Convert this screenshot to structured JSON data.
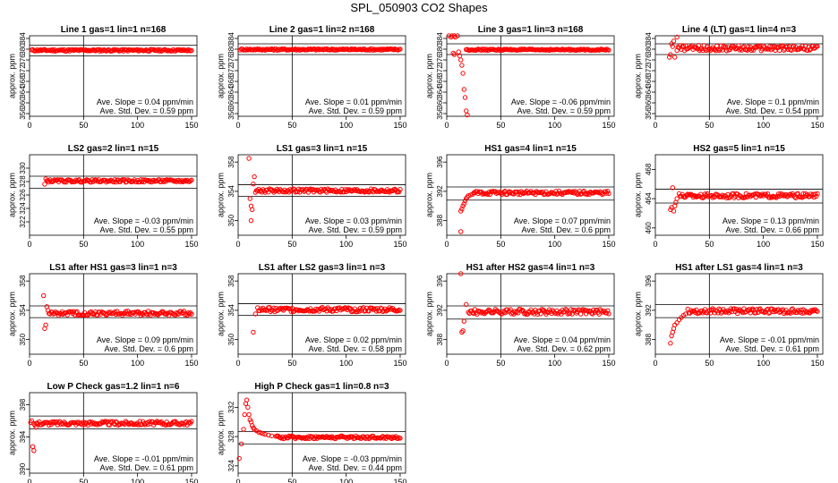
{
  "figure_title": "SPL_050903  CO2 Shapes",
  "style": {
    "point_color": "#ff0000",
    "line_color": "#000000"
  },
  "chart_data": [
    {
      "type": "scatter",
      "title": "Line 1 gas=1 lin=1 n=168",
      "ylabel": "approx. ppm",
      "xlim": [
        0,
        155
      ],
      "ylim": [
        355,
        385
      ],
      "xticks": [
        0,
        50,
        100,
        150
      ],
      "yticks": [
        356,
        360,
        364,
        368,
        372,
        376,
        380,
        384
      ],
      "hlines": [
        377.5,
        381.5
      ],
      "vline": 50,
      "slope_text": "Ave. Slope = 0.04  ppm/min",
      "stddev_text": "Ave. Std. Dev. = 0.59  ppm",
      "series": [
        {
          "x_start": 2,
          "x_end": 150,
          "base": 379.6,
          "noise": 0.35
        }
      ],
      "extra_points": []
    },
    {
      "type": "scatter",
      "title": "Line 2 gas=1 lin=2 n=168",
      "ylabel": "approx. ppm",
      "xlim": [
        0,
        155
      ],
      "ylim": [
        355,
        385
      ],
      "xticks": [
        0,
        50,
        100,
        150
      ],
      "yticks": [
        356,
        360,
        364,
        368,
        372,
        376,
        380,
        384
      ],
      "hlines": [
        378,
        382
      ],
      "vline": 50,
      "slope_text": "Ave. Slope = 0.01  ppm/min",
      "stddev_text": "Ave. Std. Dev. = 0.59  ppm",
      "series": [
        {
          "x_start": 2,
          "x_end": 150,
          "base": 379.9,
          "noise": 0.3
        }
      ],
      "extra_points": []
    },
    {
      "type": "scatter",
      "title": "Line 3 gas=1 lin=3 n=168",
      "ylabel": "approx. ppm",
      "xlim": [
        0,
        155
      ],
      "ylim": [
        355,
        385
      ],
      "xticks": [
        0,
        50,
        100,
        150
      ],
      "yticks": [
        356,
        360,
        364,
        368,
        372,
        376,
        380,
        384
      ],
      "hlines": [
        378,
        382
      ],
      "vline": 50,
      "slope_text": "Ave. Slope = -0.06  ppm/min",
      "stddev_text": "Ave. Std. Dev. = 0.59  ppm",
      "series": [
        {
          "x_start": 18,
          "x_end": 150,
          "base": 379.8,
          "noise": 0.25
        }
      ],
      "extra_points": [
        [
          2,
          385
        ],
        [
          4,
          384.5
        ],
        [
          5,
          385
        ],
        [
          7,
          385
        ],
        [
          8,
          384.5
        ],
        [
          10,
          385
        ],
        [
          6,
          378.5
        ],
        [
          7,
          378
        ],
        [
          12,
          377.5
        ],
        [
          14,
          374
        ],
        [
          15,
          371
        ],
        [
          16,
          365
        ],
        [
          17,
          362
        ],
        [
          18,
          357
        ],
        [
          19,
          355.5
        ],
        [
          13,
          376
        ],
        [
          11,
          379
        ]
      ]
    },
    {
      "type": "scatter",
      "title": "Line 4 (LT) gas=1 lin=4 n=3",
      "ylabel": "approx. ppm",
      "xlim": [
        0,
        155
      ],
      "ylim": [
        355,
        385
      ],
      "xticks": [
        0,
        50,
        100,
        150
      ],
      "yticks": [
        356,
        360,
        364,
        368,
        372,
        376,
        380,
        384
      ],
      "hlines": [
        378,
        382
      ],
      "vline": 50,
      "slope_text": "Ave. Slope = 0.1  ppm/min",
      "stddev_text": "Ave. Std. Dev. = 0.54  ppm",
      "series": [
        {
          "x_start": 20,
          "x_end": 150,
          "base": 380.4,
          "noise": 1.0
        }
      ],
      "extra_points": [
        [
          13,
          377
        ],
        [
          14,
          378
        ],
        [
          15,
          382
        ],
        [
          17,
          383
        ],
        [
          18,
          377
        ],
        [
          20,
          384.5
        ],
        [
          16,
          381
        ]
      ]
    },
    {
      "type": "scatter",
      "title": "LS2 gas=2 lin=1 n=15",
      "ylabel": "approx. ppm",
      "xlim": [
        0,
        155
      ],
      "ylim": [
        320,
        332
      ],
      "xticks": [
        0,
        50,
        100,
        150
      ],
      "yticks": [
        322,
        324,
        326,
        328,
        330
      ],
      "hlines": [
        327,
        328.8
      ],
      "vline": 50,
      "slope_text": "Ave. Slope = -0.03  ppm/min",
      "stddev_text": "Ave. Std. Dev. = 0.55  ppm",
      "series": [
        {
          "x_start": 16,
          "x_end": 150,
          "base": 328.1,
          "noise": 0.2
        }
      ],
      "extra_points": [
        [
          14,
          327.6
        ],
        [
          15,
          328.4
        ]
      ]
    },
    {
      "type": "scatter",
      "title": "LS1 gas=3 lin=1 n=15",
      "ylabel": "approx. ppm",
      "xlim": [
        0,
        155
      ],
      "ylim": [
        348,
        359
      ],
      "xticks": [
        0,
        50,
        100,
        150
      ],
      "yticks": [
        350,
        354,
        358
      ],
      "hlines": [
        353.3,
        354.9
      ],
      "vline": 50,
      "slope_text": "Ave. Slope = 0.03  ppm/min",
      "stddev_text": "Ave. Std. Dev. = 0.59  ppm",
      "series": [
        {
          "x_start": 16,
          "x_end": 150,
          "base": 354.1,
          "noise": 0.25
        }
      ],
      "extra_points": [
        [
          10,
          358.5
        ],
        [
          11,
          353
        ],
        [
          12,
          352
        ],
        [
          13,
          351.5
        ],
        [
          14,
          355
        ],
        [
          15,
          356
        ],
        [
          12,
          350
        ]
      ]
    },
    {
      "type": "scatter",
      "title": "HS1 gas=4 lin=1 n=15",
      "ylabel": "approx. ppm",
      "xlim": [
        0,
        155
      ],
      "ylim": [
        386,
        397
      ],
      "xticks": [
        0,
        50,
        100,
        150
      ],
      "yticks": [
        388,
        392,
        396
      ],
      "hlines": [
        390.8,
        392.6
      ],
      "vline": 50,
      "slope_text": "Ave. Slope = 0.07  ppm/min",
      "stddev_text": "Ave. Std. Dev. = 0.6  ppm",
      "series": [
        {
          "x_start": 25,
          "x_end": 150,
          "base": 391.8,
          "noise": 0.25
        }
      ],
      "extra_points": [
        [
          13,
          389.3
        ],
        [
          14,
          389.6
        ],
        [
          15,
          390
        ],
        [
          16,
          390.3
        ],
        [
          17,
          390.7
        ],
        [
          18,
          391
        ],
        [
          19,
          391.2
        ],
        [
          20,
          391.4
        ],
        [
          22,
          391.5
        ],
        [
          24,
          391.6
        ],
        [
          13,
          386.5
        ]
      ]
    },
    {
      "type": "scatter",
      "title": "HS2 gas=5 lin=1 n=15",
      "ylabel": "approx. ppm",
      "xlim": [
        0,
        155
      ],
      "ylim": [
        459,
        470
      ],
      "xticks": [
        0,
        50,
        100,
        150
      ],
      "yticks": [
        460,
        464,
        468
      ],
      "hlines": [
        463.4,
        465.3
      ],
      "vline": 50,
      "slope_text": "Ave. Slope = 0.13  ppm/min",
      "stddev_text": "Ave. Std. Dev. = 0.66  ppm",
      "series": [
        {
          "x_start": 22,
          "x_end": 150,
          "base": 464.4,
          "noise": 0.3
        }
      ],
      "extra_points": [
        [
          14,
          462.5
        ],
        [
          15,
          462.8
        ],
        [
          16,
          465.5
        ],
        [
          17,
          462.3
        ],
        [
          18,
          463
        ],
        [
          19,
          463.5
        ],
        [
          20,
          464
        ]
      ]
    },
    {
      "type": "scatter",
      "title": "LS1 after HS1 gas=3 lin=1 n=3",
      "ylabel": "approx. ppm",
      "xlim": [
        0,
        155
      ],
      "ylim": [
        348,
        359
      ],
      "xticks": [
        0,
        50,
        100,
        150
      ],
      "yticks": [
        350,
        354,
        358
      ],
      "hlines": [
        353,
        354.6
      ],
      "vline": 50,
      "slope_text": "Ave. Slope = 0.09  ppm/min",
      "stddev_text": "Ave. Std. Dev. = 0.6  ppm",
      "series": [
        {
          "x_start": 18,
          "x_end": 150,
          "base": 353.6,
          "noise": 0.3
        }
      ],
      "extra_points": [
        [
          13,
          356
        ],
        [
          14,
          351.5
        ],
        [
          15,
          352
        ],
        [
          16,
          354.5
        ],
        [
          17,
          354
        ]
      ]
    },
    {
      "type": "scatter",
      "title": "LS1 after LS2 gas=3 lin=1 n=3",
      "ylabel": "approx. ppm",
      "xlim": [
        0,
        155
      ],
      "ylim": [
        348,
        359
      ],
      "xticks": [
        0,
        50,
        100,
        150
      ],
      "yticks": [
        350,
        354,
        358
      ],
      "hlines": [
        353.3,
        354.9
      ],
      "vline": 50,
      "slope_text": "Ave. Slope = 0.02  ppm/min",
      "stddev_text": "Ave. Std. Dev. = 0.58  ppm",
      "series": [
        {
          "x_start": 18,
          "x_end": 150,
          "base": 354.1,
          "noise": 0.3
        }
      ],
      "extra_points": [
        [
          14,
          351
        ],
        [
          16,
          353.5
        ]
      ]
    },
    {
      "type": "scatter",
      "title": "HS1 after HS2 gas=4 lin=1 n=3",
      "ylabel": "approx. ppm",
      "xlim": [
        0,
        155
      ],
      "ylim": [
        386,
        397
      ],
      "xticks": [
        0,
        50,
        100,
        150
      ],
      "yticks": [
        388,
        392,
        396
      ],
      "hlines": [
        390.8,
        392.6
      ],
      "vline": 50,
      "slope_text": "Ave. Slope = 0.04  ppm/min",
      "stddev_text": "Ave. Std. Dev. = 0.62  ppm",
      "series": [
        {
          "x_start": 20,
          "x_end": 150,
          "base": 391.8,
          "noise": 0.35
        }
      ],
      "extra_points": [
        [
          13,
          397
        ],
        [
          14,
          389
        ],
        [
          15,
          389.2
        ],
        [
          16,
          390.5
        ],
        [
          18,
          392.8
        ]
      ]
    },
    {
      "type": "scatter",
      "title": "HS1 after LS1 gas=4 lin=1 n=3",
      "ylabel": "approx. ppm",
      "xlim": [
        0,
        155
      ],
      "ylim": [
        386,
        397
      ],
      "xticks": [
        0,
        50,
        100,
        150
      ],
      "yticks": [
        388,
        392,
        396
      ],
      "hlines": [
        391,
        392.8
      ],
      "vline": 50,
      "slope_text": "Ave. Slope = -0.01  ppm/min",
      "stddev_text": "Ave. Std. Dev. = 0.61  ppm",
      "series": [
        {
          "x_start": 30,
          "x_end": 150,
          "base": 391.9,
          "noise": 0.35
        }
      ],
      "extra_points": [
        [
          14,
          387.5
        ],
        [
          15,
          388.5
        ],
        [
          16,
          389
        ],
        [
          17,
          389.5
        ],
        [
          18,
          390
        ],
        [
          20,
          390.3
        ],
        [
          22,
          390.7
        ],
        [
          24,
          391
        ],
        [
          26,
          391.3
        ],
        [
          28,
          391.5
        ]
      ]
    },
    {
      "type": "scatter",
      "title": "Low P Check gas=1.2 lin=1 n=6",
      "ylabel": "approx. ppm",
      "xlim": [
        0,
        155
      ],
      "ylim": [
        389.5,
        399.5
      ],
      "xticks": [
        0,
        50,
        100,
        150
      ],
      "yticks": [
        390,
        394,
        398
      ],
      "hlines": [
        395,
        396.6
      ],
      "vline": 50,
      "slope_text": "Ave. Slope = -0.01  ppm/min",
      "stddev_text": "Ave. Std. Dev. = 0.61  ppm",
      "series": [
        {
          "x_start": 4,
          "x_end": 150,
          "base": 395.7,
          "noise": 0.25
        }
      ],
      "extra_points": [
        [
          1,
          395.8
        ],
        [
          2,
          396
        ],
        [
          3,
          392.8
        ],
        [
          4,
          392.3
        ],
        [
          6,
          395.2
        ]
      ]
    },
    {
      "type": "scatter",
      "title": "High P Check gas=1 lin=0.8 n=3",
      "ylabel": "approx. ppm",
      "xlim": [
        0,
        155
      ],
      "ylim": [
        323,
        334
      ],
      "xticks": [
        0,
        50,
        100,
        150
      ],
      "yticks": [
        324,
        328,
        332
      ],
      "hlines": [
        327,
        328.7
      ],
      "vline": 50,
      "slope_text": "Ave. Slope = -0.03  ppm/min",
      "stddev_text": "Ave. Std. Dev. = 0.44  ppm",
      "series": [
        {
          "x_start": 35,
          "x_end": 150,
          "base": 327.9,
          "noise": 0.2
        }
      ],
      "extra_points": [
        [
          1,
          325
        ],
        [
          3,
          327
        ],
        [
          5,
          329
        ],
        [
          6,
          331
        ],
        [
          7,
          332.5
        ],
        [
          8,
          333
        ],
        [
          9,
          332
        ],
        [
          10,
          331
        ],
        [
          11,
          330.3
        ],
        [
          12,
          330
        ],
        [
          13,
          329.5
        ],
        [
          14,
          329.2
        ],
        [
          15,
          329
        ],
        [
          17,
          328.8
        ],
        [
          19,
          328.6
        ],
        [
          21,
          328.5
        ],
        [
          23,
          328.4
        ],
        [
          25,
          328.3
        ],
        [
          28,
          328.2
        ],
        [
          31,
          328.1
        ]
      ]
    }
  ]
}
